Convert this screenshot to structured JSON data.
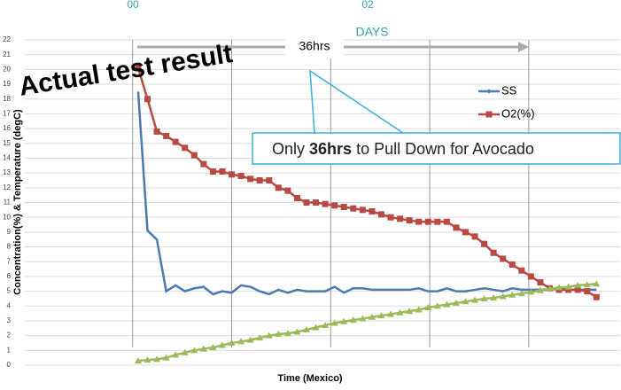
{
  "chart_data": {
    "type": "line",
    "title": "Actual test result",
    "top_labels": [
      "00",
      "02"
    ],
    "days_label": "DAYS",
    "span_label": "36hrs",
    "callout": [
      "Only ",
      "36hrs",
      " to Pull Down for Avocado"
    ],
    "xlabel": "Time (Mexico)",
    "ylabel": "Concentration(%) & Temperature (degC)",
    "xlim": [
      -9.8,
      44.3
    ],
    "xticks": [
      0,
      9,
      18,
      27,
      36
    ],
    "ylim": [
      0,
      22
    ],
    "yticks": [
      0,
      1,
      2,
      3,
      4,
      5,
      6,
      7,
      8,
      9,
      10,
      11,
      12,
      13,
      14,
      15,
      16,
      17,
      18,
      19,
      20,
      21,
      22
    ],
    "grid": true,
    "x": [
      0.5,
      1.35,
      2.2,
      3.05,
      3.9,
      4.75,
      5.6,
      6.45,
      7.3,
      8.15,
      9.0,
      9.85,
      10.7,
      11.55,
      12.4,
      13.25,
      14.1,
      14.95,
      15.8,
      16.65,
      17.5,
      18.35,
      19.2,
      20.05,
      20.9,
      21.75,
      22.6,
      23.45,
      24.3,
      25.15,
      26.0,
      26.85,
      27.7,
      28.55,
      29.4,
      30.25,
      31.1,
      31.95,
      32.8,
      33.65,
      34.5,
      35.35,
      36.2,
      37.05,
      37.9,
      38.75,
      39.6,
      40.45,
      41.3,
      42.15
    ],
    "series": [
      {
        "name": "SS",
        "color": "#4a7ab0",
        "marker": "diamond",
        "values": [
          18.5,
          9.1,
          8.5,
          5.0,
          5.4,
          5.0,
          5.2,
          5.3,
          4.8,
          5.0,
          4.9,
          5.4,
          5.3,
          5.0,
          4.8,
          5.1,
          4.9,
          5.1,
          5.0,
          5.0,
          5.0,
          5.3,
          4.9,
          5.2,
          5.2,
          5.1,
          5.1,
          5.1,
          5.1,
          5.1,
          5.2,
          5.0,
          5.0,
          5.2,
          5.0,
          5.0,
          5.1,
          5.2,
          5.1,
          5.0,
          5.2,
          5.1,
          5.1,
          5.1,
          5.1,
          5.2,
          5.1,
          5.1,
          5.1,
          5.1
        ]
      },
      {
        "name": "O2(%)",
        "color": "#b84a44",
        "marker": "square",
        "values": [
          20.1,
          18,
          15.8,
          15.5,
          15.1,
          14.7,
          14.2,
          13.6,
          13.1,
          13.1,
          12.9,
          12.8,
          12.6,
          12.5,
          12.5,
          12.0,
          11.8,
          11.3,
          11.0,
          11.0,
          10.9,
          10.8,
          10.7,
          10.6,
          10.5,
          10.4,
          10.2,
          10.0,
          9.9,
          9.8,
          9.7,
          9.7,
          9.7,
          9.7,
          9.3,
          9.0,
          8.7,
          8.2,
          7.6,
          7.2,
          6.8,
          6.4,
          6.0,
          5.6,
          5.2,
          5.1,
          5.1,
          5.1,
          5.0,
          4.6
        ]
      },
      {
        "color": "#9bbb59",
        "marker": "triangle",
        "values": [
          0.3,
          0.35,
          0.4,
          0.5,
          0.7,
          0.85,
          1.0,
          1.1,
          1.2,
          1.35,
          1.5,
          1.6,
          1.7,
          1.85,
          2.0,
          2.1,
          2.15,
          2.25,
          2.4,
          2.55,
          2.7,
          2.85,
          2.95,
          3.05,
          3.15,
          3.25,
          3.35,
          3.45,
          3.55,
          3.65,
          3.75,
          3.9,
          4.0,
          4.1,
          4.2,
          4.3,
          4.4,
          4.5,
          4.55,
          4.65,
          4.75,
          4.85,
          4.95,
          5.05,
          5.15,
          5.25,
          5.3,
          5.4,
          5.45,
          5.5
        ]
      }
    ]
  }
}
